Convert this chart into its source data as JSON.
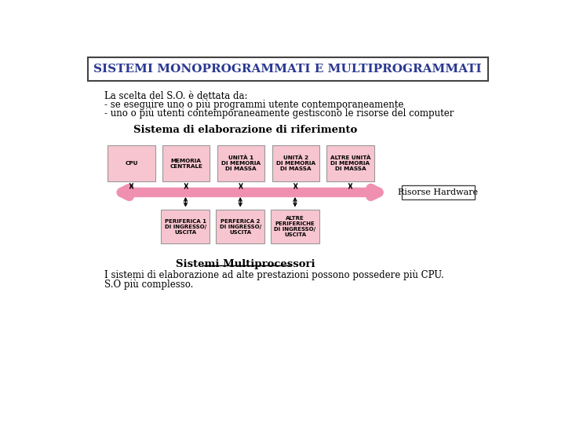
{
  "title": "SISTEMI MONOPROGRAMMATI E MULTIPROGRAMMATI",
  "title_color": "#2b3990",
  "bg_color": "#ffffff",
  "intro_lines": [
    "La scelta del S.O. è dettata da:",
    "- se eseguire uno o più programmi utente contemporaneamente",
    "- uno o più utenti contemporaneamente gestiscono le risorse del computer"
  ],
  "diagram_title": "Sistema di elaborazione di riferimento",
  "top_boxes": [
    "CPU",
    "MEMORIA\nCENTRALE",
    "UNITÀ 1\nDI MEMORIA\nDI MASSA",
    "UNITÀ 2\nDI MEMORIA\nDI MASSA",
    "ALTRE UNITÀ\nDI MEMORIA\nDI MASSA"
  ],
  "bottom_boxes": [
    "PERIFERICA 1\nDI INGRESSO/\nUSCITA",
    "PERFERICA 2\nDI INGRESSO/\nUSCITA",
    "ALTRE\nPERIFERICHE\nDI INGRESSO/\nUSCITA"
  ],
  "box_facecolor": "#f7c5d0",
  "box_edgecolor": "#999999",
  "arrow_color": "#f090b0",
  "risorse_label": "Risorse Hardware",
  "bottom_section_title": "Sistemi Multiprocessori",
  "bottom_lines": [
    "I sistemi di elaborazione ad alte prestazioni possono possedere più CPU.",
    "S.O più complesso."
  ]
}
